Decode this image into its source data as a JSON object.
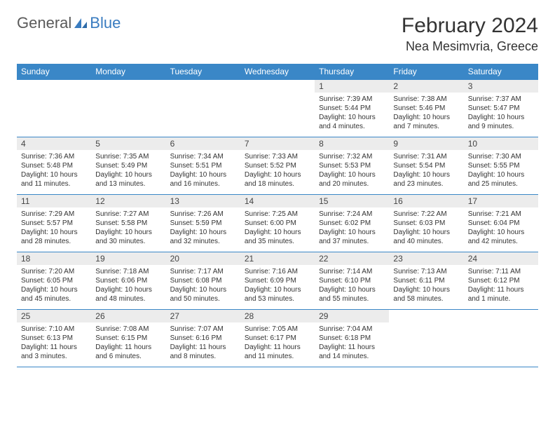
{
  "logo": {
    "general": "General",
    "blue": "Blue"
  },
  "title": "February 2024",
  "location": "Nea Mesimvria, Greece",
  "header_color": "#3a87c7",
  "daynum_bg": "#ececec",
  "border_color": "#3a87c7",
  "columns": [
    "Sunday",
    "Monday",
    "Tuesday",
    "Wednesday",
    "Thursday",
    "Friday",
    "Saturday"
  ],
  "weeks": [
    [
      null,
      null,
      null,
      null,
      {
        "n": "1",
        "sr": "7:39 AM",
        "ss": "5:44 PM",
        "dl": "10 hours and 4 minutes."
      },
      {
        "n": "2",
        "sr": "7:38 AM",
        "ss": "5:46 PM",
        "dl": "10 hours and 7 minutes."
      },
      {
        "n": "3",
        "sr": "7:37 AM",
        "ss": "5:47 PM",
        "dl": "10 hours and 9 minutes."
      }
    ],
    [
      {
        "n": "4",
        "sr": "7:36 AM",
        "ss": "5:48 PM",
        "dl": "10 hours and 11 minutes."
      },
      {
        "n": "5",
        "sr": "7:35 AM",
        "ss": "5:49 PM",
        "dl": "10 hours and 13 minutes."
      },
      {
        "n": "6",
        "sr": "7:34 AM",
        "ss": "5:51 PM",
        "dl": "10 hours and 16 minutes."
      },
      {
        "n": "7",
        "sr": "7:33 AM",
        "ss": "5:52 PM",
        "dl": "10 hours and 18 minutes."
      },
      {
        "n": "8",
        "sr": "7:32 AM",
        "ss": "5:53 PM",
        "dl": "10 hours and 20 minutes."
      },
      {
        "n": "9",
        "sr": "7:31 AM",
        "ss": "5:54 PM",
        "dl": "10 hours and 23 minutes."
      },
      {
        "n": "10",
        "sr": "7:30 AM",
        "ss": "5:55 PM",
        "dl": "10 hours and 25 minutes."
      }
    ],
    [
      {
        "n": "11",
        "sr": "7:29 AM",
        "ss": "5:57 PM",
        "dl": "10 hours and 28 minutes."
      },
      {
        "n": "12",
        "sr": "7:27 AM",
        "ss": "5:58 PM",
        "dl": "10 hours and 30 minutes."
      },
      {
        "n": "13",
        "sr": "7:26 AM",
        "ss": "5:59 PM",
        "dl": "10 hours and 32 minutes."
      },
      {
        "n": "14",
        "sr": "7:25 AM",
        "ss": "6:00 PM",
        "dl": "10 hours and 35 minutes."
      },
      {
        "n": "15",
        "sr": "7:24 AM",
        "ss": "6:02 PM",
        "dl": "10 hours and 37 minutes."
      },
      {
        "n": "16",
        "sr": "7:22 AM",
        "ss": "6:03 PM",
        "dl": "10 hours and 40 minutes."
      },
      {
        "n": "17",
        "sr": "7:21 AM",
        "ss": "6:04 PM",
        "dl": "10 hours and 42 minutes."
      }
    ],
    [
      {
        "n": "18",
        "sr": "7:20 AM",
        "ss": "6:05 PM",
        "dl": "10 hours and 45 minutes."
      },
      {
        "n": "19",
        "sr": "7:18 AM",
        "ss": "6:06 PM",
        "dl": "10 hours and 48 minutes."
      },
      {
        "n": "20",
        "sr": "7:17 AM",
        "ss": "6:08 PM",
        "dl": "10 hours and 50 minutes."
      },
      {
        "n": "21",
        "sr": "7:16 AM",
        "ss": "6:09 PM",
        "dl": "10 hours and 53 minutes."
      },
      {
        "n": "22",
        "sr": "7:14 AM",
        "ss": "6:10 PM",
        "dl": "10 hours and 55 minutes."
      },
      {
        "n": "23",
        "sr": "7:13 AM",
        "ss": "6:11 PM",
        "dl": "10 hours and 58 minutes."
      },
      {
        "n": "24",
        "sr": "7:11 AM",
        "ss": "6:12 PM",
        "dl": "11 hours and 1 minute."
      }
    ],
    [
      {
        "n": "25",
        "sr": "7:10 AM",
        "ss": "6:13 PM",
        "dl": "11 hours and 3 minutes."
      },
      {
        "n": "26",
        "sr": "7:08 AM",
        "ss": "6:15 PM",
        "dl": "11 hours and 6 minutes."
      },
      {
        "n": "27",
        "sr": "7:07 AM",
        "ss": "6:16 PM",
        "dl": "11 hours and 8 minutes."
      },
      {
        "n": "28",
        "sr": "7:05 AM",
        "ss": "6:17 PM",
        "dl": "11 hours and 11 minutes."
      },
      {
        "n": "29",
        "sr": "7:04 AM",
        "ss": "6:18 PM",
        "dl": "11 hours and 14 minutes."
      },
      null,
      null
    ]
  ],
  "labels": {
    "sunrise": "Sunrise:",
    "sunset": "Sunset:",
    "daylight": "Daylight:"
  }
}
